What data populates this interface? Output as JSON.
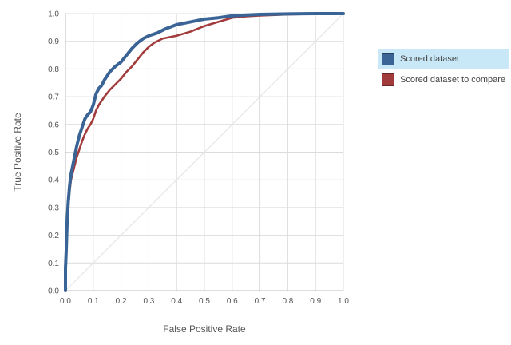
{
  "chart_data": {
    "type": "line",
    "xlabel": "False Positive Rate",
    "ylabel": "True Positive Rate",
    "xlim": [
      0,
      1
    ],
    "ylim": [
      0,
      1
    ],
    "grid": true,
    "x_ticks": [
      "0.0",
      "0.1",
      "0.2",
      "0.3",
      "0.4",
      "0.5",
      "0.6",
      "0.7",
      "0.8",
      "0.9",
      "1.0"
    ],
    "y_ticks": [
      "0.0",
      "0.1",
      "0.2",
      "0.3",
      "0.4",
      "0.5",
      "0.6",
      "0.7",
      "0.8",
      "0.9",
      "1.0"
    ],
    "legend_position": "right",
    "diagonal": {
      "x": [
        0,
        1
      ],
      "y": [
        0,
        1
      ],
      "color": "#e6e6e6"
    },
    "series": [
      {
        "name": "Scored dataset",
        "color": "#3a6496",
        "points": [
          [
            0,
            0
          ],
          [
            0,
            0.08
          ],
          [
            0.003,
            0.15
          ],
          [
            0.006,
            0.25
          ],
          [
            0.01,
            0.32
          ],
          [
            0.015,
            0.38
          ],
          [
            0.02,
            0.42
          ],
          [
            0.03,
            0.47
          ],
          [
            0.04,
            0.52
          ],
          [
            0.05,
            0.56
          ],
          [
            0.06,
            0.59
          ],
          [
            0.07,
            0.62
          ],
          [
            0.08,
            0.635
          ],
          [
            0.09,
            0.645
          ],
          [
            0.1,
            0.67
          ],
          [
            0.11,
            0.71
          ],
          [
            0.12,
            0.73
          ],
          [
            0.13,
            0.74
          ],
          [
            0.14,
            0.76
          ],
          [
            0.15,
            0.775
          ],
          [
            0.16,
            0.79
          ],
          [
            0.18,
            0.81
          ],
          [
            0.2,
            0.825
          ],
          [
            0.22,
            0.85
          ],
          [
            0.24,
            0.875
          ],
          [
            0.26,
            0.895
          ],
          [
            0.28,
            0.91
          ],
          [
            0.3,
            0.92
          ],
          [
            0.33,
            0.93
          ],
          [
            0.36,
            0.945
          ],
          [
            0.4,
            0.96
          ],
          [
            0.45,
            0.97
          ],
          [
            0.5,
            0.98
          ],
          [
            0.55,
            0.985
          ],
          [
            0.6,
            0.992
          ],
          [
            0.65,
            0.995
          ],
          [
            0.7,
            0.997
          ],
          [
            0.8,
            0.999
          ],
          [
            0.9,
            1.0
          ],
          [
            1.0,
            1.0
          ]
        ]
      },
      {
        "name": "Scored dataset to compare",
        "color": "#a23b3b",
        "points": [
          [
            0,
            0
          ],
          [
            0,
            0.06
          ],
          [
            0.003,
            0.13
          ],
          [
            0.006,
            0.22
          ],
          [
            0.01,
            0.3
          ],
          [
            0.015,
            0.36
          ],
          [
            0.02,
            0.4
          ],
          [
            0.03,
            0.44
          ],
          [
            0.04,
            0.48
          ],
          [
            0.05,
            0.51
          ],
          [
            0.06,
            0.54
          ],
          [
            0.07,
            0.565
          ],
          [
            0.08,
            0.585
          ],
          [
            0.09,
            0.6
          ],
          [
            0.1,
            0.62
          ],
          [
            0.11,
            0.65
          ],
          [
            0.12,
            0.67
          ],
          [
            0.14,
            0.7
          ],
          [
            0.16,
            0.725
          ],
          [
            0.18,
            0.745
          ],
          [
            0.2,
            0.765
          ],
          [
            0.22,
            0.79
          ],
          [
            0.24,
            0.81
          ],
          [
            0.26,
            0.835
          ],
          [
            0.28,
            0.86
          ],
          [
            0.3,
            0.88
          ],
          [
            0.32,
            0.895
          ],
          [
            0.35,
            0.91
          ],
          [
            0.4,
            0.92
          ],
          [
            0.45,
            0.935
          ],
          [
            0.5,
            0.955
          ],
          [
            0.55,
            0.97
          ],
          [
            0.6,
            0.985
          ],
          [
            0.65,
            0.99
          ],
          [
            0.7,
            0.993
          ],
          [
            0.8,
            0.997
          ],
          [
            0.9,
            0.999
          ],
          [
            1.0,
            1.0
          ]
        ]
      }
    ]
  },
  "legend": {
    "items": [
      {
        "label": "Scored dataset",
        "color": "#3a6496",
        "active": true
      },
      {
        "label": "Scored dataset to compare",
        "color": "#a23b3b",
        "active": false
      }
    ],
    "highlight_color": "#c8e8f8"
  }
}
